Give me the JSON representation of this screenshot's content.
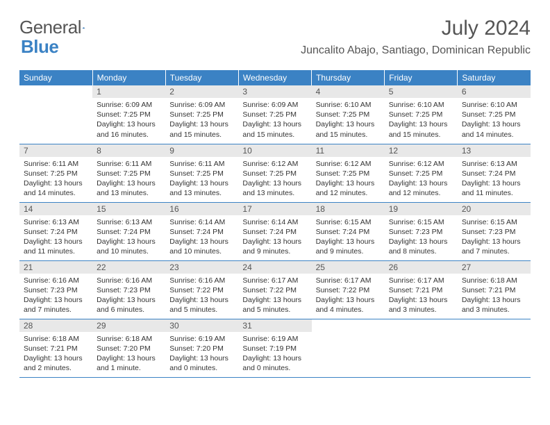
{
  "brand": {
    "part1": "General",
    "part2": "Blue"
  },
  "title": "July 2024",
  "location": "Juncalito Abajo, Santiago, Dominican Republic",
  "colors": {
    "accent": "#3b82c4",
    "daynum_bg": "#e8e8e8",
    "text": "#333333"
  },
  "weekdays": [
    "Sunday",
    "Monday",
    "Tuesday",
    "Wednesday",
    "Thursday",
    "Friday",
    "Saturday"
  ],
  "weeks": [
    [
      {
        "empty": true
      },
      {
        "n": "1",
        "sr": "6:09 AM",
        "ss": "7:25 PM",
        "dl": "13 hours and 16 minutes."
      },
      {
        "n": "2",
        "sr": "6:09 AM",
        "ss": "7:25 PM",
        "dl": "13 hours and 15 minutes."
      },
      {
        "n": "3",
        "sr": "6:09 AM",
        "ss": "7:25 PM",
        "dl": "13 hours and 15 minutes."
      },
      {
        "n": "4",
        "sr": "6:10 AM",
        "ss": "7:25 PM",
        "dl": "13 hours and 15 minutes."
      },
      {
        "n": "5",
        "sr": "6:10 AM",
        "ss": "7:25 PM",
        "dl": "13 hours and 15 minutes."
      },
      {
        "n": "6",
        "sr": "6:10 AM",
        "ss": "7:25 PM",
        "dl": "13 hours and 14 minutes."
      }
    ],
    [
      {
        "n": "7",
        "sr": "6:11 AM",
        "ss": "7:25 PM",
        "dl": "13 hours and 14 minutes."
      },
      {
        "n": "8",
        "sr": "6:11 AM",
        "ss": "7:25 PM",
        "dl": "13 hours and 13 minutes."
      },
      {
        "n": "9",
        "sr": "6:11 AM",
        "ss": "7:25 PM",
        "dl": "13 hours and 13 minutes."
      },
      {
        "n": "10",
        "sr": "6:12 AM",
        "ss": "7:25 PM",
        "dl": "13 hours and 13 minutes."
      },
      {
        "n": "11",
        "sr": "6:12 AM",
        "ss": "7:25 PM",
        "dl": "13 hours and 12 minutes."
      },
      {
        "n": "12",
        "sr": "6:12 AM",
        "ss": "7:25 PM",
        "dl": "13 hours and 12 minutes."
      },
      {
        "n": "13",
        "sr": "6:13 AM",
        "ss": "7:24 PM",
        "dl": "13 hours and 11 minutes."
      }
    ],
    [
      {
        "n": "14",
        "sr": "6:13 AM",
        "ss": "7:24 PM",
        "dl": "13 hours and 11 minutes."
      },
      {
        "n": "15",
        "sr": "6:13 AM",
        "ss": "7:24 PM",
        "dl": "13 hours and 10 minutes."
      },
      {
        "n": "16",
        "sr": "6:14 AM",
        "ss": "7:24 PM",
        "dl": "13 hours and 10 minutes."
      },
      {
        "n": "17",
        "sr": "6:14 AM",
        "ss": "7:24 PM",
        "dl": "13 hours and 9 minutes."
      },
      {
        "n": "18",
        "sr": "6:15 AM",
        "ss": "7:24 PM",
        "dl": "13 hours and 9 minutes."
      },
      {
        "n": "19",
        "sr": "6:15 AM",
        "ss": "7:23 PM",
        "dl": "13 hours and 8 minutes."
      },
      {
        "n": "20",
        "sr": "6:15 AM",
        "ss": "7:23 PM",
        "dl": "13 hours and 7 minutes."
      }
    ],
    [
      {
        "n": "21",
        "sr": "6:16 AM",
        "ss": "7:23 PM",
        "dl": "13 hours and 7 minutes."
      },
      {
        "n": "22",
        "sr": "6:16 AM",
        "ss": "7:23 PM",
        "dl": "13 hours and 6 minutes."
      },
      {
        "n": "23",
        "sr": "6:16 AM",
        "ss": "7:22 PM",
        "dl": "13 hours and 5 minutes."
      },
      {
        "n": "24",
        "sr": "6:17 AM",
        "ss": "7:22 PM",
        "dl": "13 hours and 5 minutes."
      },
      {
        "n": "25",
        "sr": "6:17 AM",
        "ss": "7:22 PM",
        "dl": "13 hours and 4 minutes."
      },
      {
        "n": "26",
        "sr": "6:17 AM",
        "ss": "7:21 PM",
        "dl": "13 hours and 3 minutes."
      },
      {
        "n": "27",
        "sr": "6:18 AM",
        "ss": "7:21 PM",
        "dl": "13 hours and 3 minutes."
      }
    ],
    [
      {
        "n": "28",
        "sr": "6:18 AM",
        "ss": "7:21 PM",
        "dl": "13 hours and 2 minutes."
      },
      {
        "n": "29",
        "sr": "6:18 AM",
        "ss": "7:20 PM",
        "dl": "13 hours and 1 minute."
      },
      {
        "n": "30",
        "sr": "6:19 AM",
        "ss": "7:20 PM",
        "dl": "13 hours and 0 minutes."
      },
      {
        "n": "31",
        "sr": "6:19 AM",
        "ss": "7:19 PM",
        "dl": "13 hours and 0 minutes."
      },
      {
        "empty": true
      },
      {
        "empty": true
      },
      {
        "empty": true
      }
    ]
  ],
  "labels": {
    "sunrise": "Sunrise:",
    "sunset": "Sunset:",
    "daylight": "Daylight:"
  }
}
